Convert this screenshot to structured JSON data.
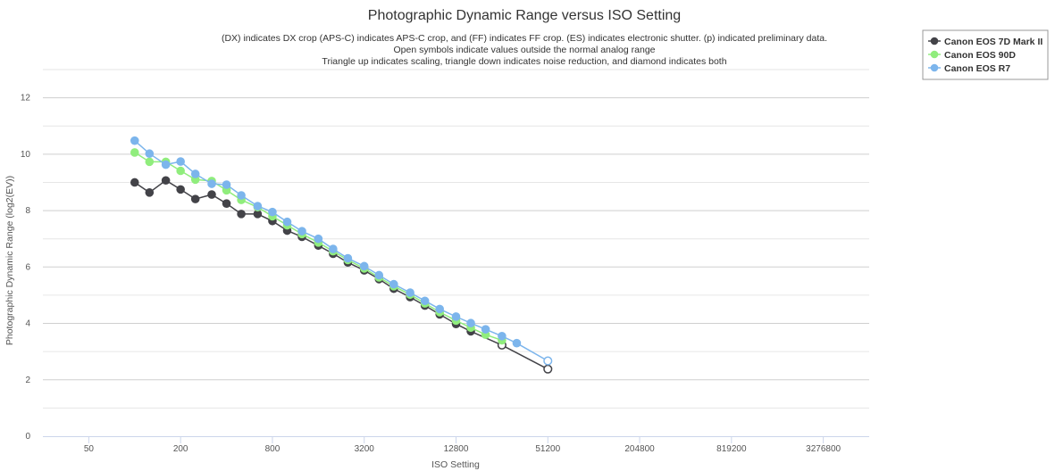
{
  "chart_data": {
    "type": "line",
    "title": "Photographic Dynamic Range versus ISO Setting",
    "subtitle": [
      "(DX) indicates DX crop (APS-C) indicates APS-C crop, and (FF) indicates FF crop. (ES) indicates electronic shutter. (p) indicated preliminary data.",
      "Open symbols indicate values outside the normal analog range",
      "Triangle up indicates scaling, triangle down indicates noise reduction, and diamond indicates both"
    ],
    "xlabel": "ISO Setting",
    "ylabel": "Photographic Dynamic Range (log2(EV))",
    "x_scale": "log2",
    "xlim": [
      25,
      6553600
    ],
    "ylim": [
      0,
      13
    ],
    "x_ticks": [
      50,
      200,
      800,
      3200,
      12800,
      51200,
      204800,
      819200,
      3276800
    ],
    "x_tick_labels": [
      "50",
      "200",
      "800",
      "3200",
      "12800",
      "51200",
      "204800",
      "819200",
      "3276800"
    ],
    "y_ticks": [
      0,
      2,
      4,
      6,
      8,
      10,
      12
    ],
    "y_tick_labels": [
      "0",
      "2",
      "4",
      "6",
      "8",
      "10",
      "12"
    ],
    "legend_position": "top-right",
    "series": [
      {
        "name": "Canon EOS 7D Mark II",
        "color": "#434348",
        "points": [
          {
            "x": 100,
            "y": 9.0
          },
          {
            "x": 125,
            "y": 8.64
          },
          {
            "x": 160,
            "y": 9.07
          },
          {
            "x": 200,
            "y": 8.75
          },
          {
            "x": 250,
            "y": 8.41
          },
          {
            "x": 320,
            "y": 8.57
          },
          {
            "x": 400,
            "y": 8.25
          },
          {
            "x": 500,
            "y": 7.88
          },
          {
            "x": 640,
            "y": 7.88
          },
          {
            "x": 800,
            "y": 7.63
          },
          {
            "x": 1000,
            "y": 7.29
          },
          {
            "x": 1250,
            "y": 7.07
          },
          {
            "x": 1600,
            "y": 6.76
          },
          {
            "x": 2000,
            "y": 6.47
          },
          {
            "x": 2500,
            "y": 6.16
          },
          {
            "x": 3200,
            "y": 5.88
          },
          {
            "x": 4000,
            "y": 5.57
          },
          {
            "x": 5000,
            "y": 5.23
          },
          {
            "x": 6400,
            "y": 4.93
          },
          {
            "x": 8000,
            "y": 4.63
          },
          {
            "x": 10000,
            "y": 4.32
          },
          {
            "x": 12800,
            "y": 3.98
          },
          {
            "x": 16000,
            "y": 3.72
          },
          {
            "x": 25600,
            "y": 3.23,
            "open": true
          },
          {
            "x": 51200,
            "y": 2.38,
            "open": true
          }
        ]
      },
      {
        "name": "Canon EOS 90D",
        "color": "#90ed7d",
        "points": [
          {
            "x": 100,
            "y": 10.06
          },
          {
            "x": 125,
            "y": 9.73
          },
          {
            "x": 160,
            "y": 9.73
          },
          {
            "x": 200,
            "y": 9.41
          },
          {
            "x": 250,
            "y": 9.1
          },
          {
            "x": 320,
            "y": 9.05
          },
          {
            "x": 400,
            "y": 8.72
          },
          {
            "x": 500,
            "y": 8.38
          },
          {
            "x": 640,
            "y": 8.12
          },
          {
            "x": 800,
            "y": 7.8
          },
          {
            "x": 1000,
            "y": 7.48
          },
          {
            "x": 1250,
            "y": 7.17
          },
          {
            "x": 1600,
            "y": 6.87
          },
          {
            "x": 2000,
            "y": 6.56
          },
          {
            "x": 2500,
            "y": 6.25
          },
          {
            "x": 3200,
            "y": 5.95
          },
          {
            "x": 4000,
            "y": 5.63
          },
          {
            "x": 5000,
            "y": 5.32
          },
          {
            "x": 6400,
            "y": 5.02
          },
          {
            "x": 8000,
            "y": 4.71
          },
          {
            "x": 10000,
            "y": 4.4
          },
          {
            "x": 12800,
            "y": 4.1
          },
          {
            "x": 16000,
            "y": 3.85
          },
          {
            "x": 20000,
            "y": 3.6
          },
          {
            "x": 25600,
            "y": 3.4
          }
        ]
      },
      {
        "name": "Canon EOS R7",
        "color": "#7cb5ec",
        "points": [
          {
            "x": 100,
            "y": 10.48
          },
          {
            "x": 125,
            "y": 10.02
          },
          {
            "x": 160,
            "y": 9.63
          },
          {
            "x": 200,
            "y": 9.74
          },
          {
            "x": 250,
            "y": 9.3
          },
          {
            "x": 320,
            "y": 8.95
          },
          {
            "x": 400,
            "y": 8.92
          },
          {
            "x": 500,
            "y": 8.54
          },
          {
            "x": 640,
            "y": 8.16
          },
          {
            "x": 800,
            "y": 7.95
          },
          {
            "x": 1000,
            "y": 7.6
          },
          {
            "x": 1250,
            "y": 7.27
          },
          {
            "x": 1600,
            "y": 7.0
          },
          {
            "x": 2000,
            "y": 6.64
          },
          {
            "x": 2500,
            "y": 6.31
          },
          {
            "x": 3200,
            "y": 6.03
          },
          {
            "x": 4000,
            "y": 5.71
          },
          {
            "x": 5000,
            "y": 5.39
          },
          {
            "x": 6400,
            "y": 5.09
          },
          {
            "x": 8000,
            "y": 4.8
          },
          {
            "x": 10000,
            "y": 4.51
          },
          {
            "x": 12800,
            "y": 4.24
          },
          {
            "x": 16000,
            "y": 4.01
          },
          {
            "x": 20000,
            "y": 3.79
          },
          {
            "x": 25600,
            "y": 3.55
          },
          {
            "x": 32000,
            "y": 3.3
          },
          {
            "x": 51200,
            "y": 2.67,
            "open": true
          }
        ]
      }
    ]
  },
  "menu": {
    "icon": "hamburger-menu-icon"
  },
  "colors": {
    "grid": "#d8d8d8",
    "axis": "#ccd6eb",
    "background": "#ffffff"
  }
}
